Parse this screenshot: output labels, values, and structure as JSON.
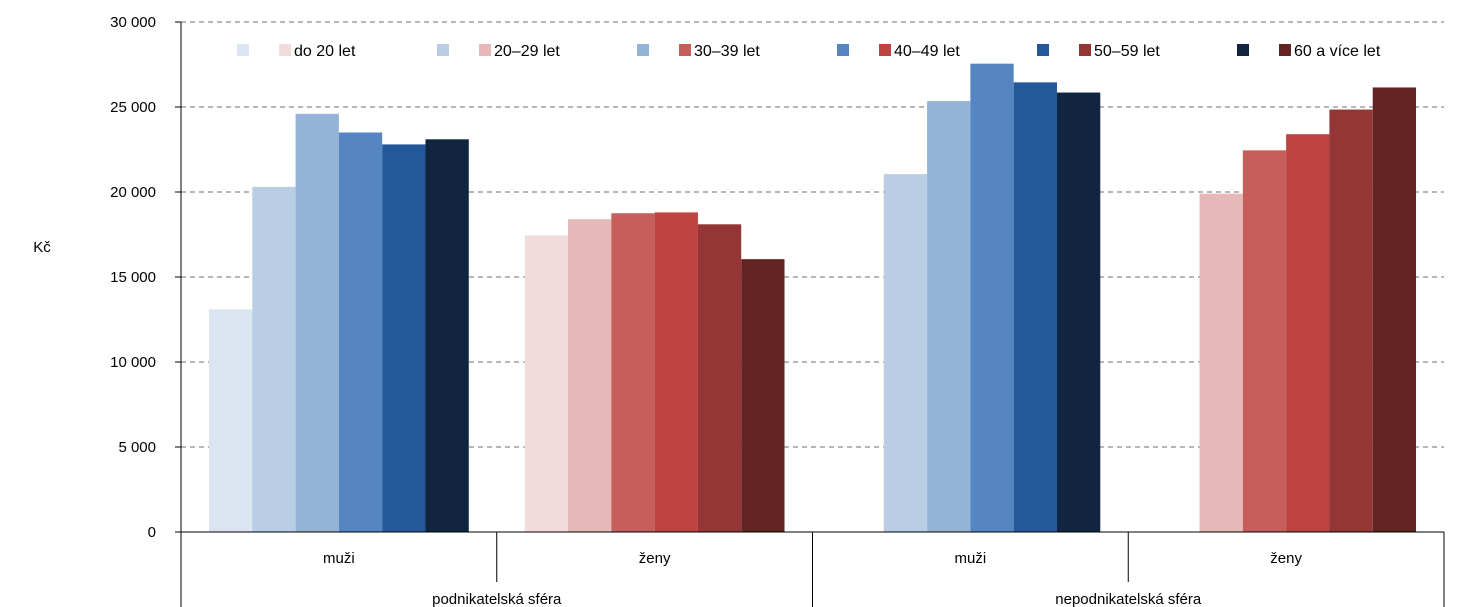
{
  "chart_data": {
    "type": "bar",
    "title": "",
    "ylabel": "Kč",
    "xlabel": "",
    "ylim": [
      0,
      30000
    ],
    "yticks": [
      0,
      5000,
      10000,
      15000,
      20000,
      25000,
      30000
    ],
    "ytick_labels": [
      "0",
      "5 000",
      "10 000",
      "15 000",
      "20 000",
      "25 000",
      "30 000"
    ],
    "grid": "horizontal-dashed",
    "legend_position": "top",
    "legend": [
      {
        "label": "do 20 let",
        "colors": [
          "#dbe5f1",
          "#f2dcdb"
        ]
      },
      {
        "label": "20–29 let",
        "colors": [
          "#b9cde5",
          "#e6b9b8"
        ]
      },
      {
        "label": "30–39 let",
        "colors": [
          "#95b3d7",
          "#c65f5c"
        ]
      },
      {
        "label": "40–49 let",
        "colors": [
          "#5686c1",
          "#bc4340"
        ]
      },
      {
        "label": "50–59 let",
        "colors": [
          "#245898",
          "#943635"
        ]
      },
      {
        "label": "60 a více let",
        "colors": [
          "#112540",
          "#632523"
        ]
      }
    ],
    "groups": [
      {
        "label": "podnikatelská sféra",
        "subgroups": [
          {
            "label": "muži",
            "gender": "m",
            "values": [
              13100,
              20300,
              24600,
              23500,
              22800,
              23100
            ]
          },
          {
            "label": "ženy",
            "gender": "f",
            "values": [
              17450,
              18400,
              18750,
              18800,
              18100,
              16050
            ]
          }
        ]
      },
      {
        "label": "nepodnikatelská sféra",
        "subgroups": [
          {
            "label": "muži",
            "gender": "m",
            "values": [
              null,
              21050,
              25350,
              27550,
              26450,
              25850
            ]
          },
          {
            "label": "ženy",
            "gender": "f",
            "values": [
              null,
              19900,
              22450,
              23400,
              24850,
              26150
            ]
          }
        ]
      }
    ]
  }
}
